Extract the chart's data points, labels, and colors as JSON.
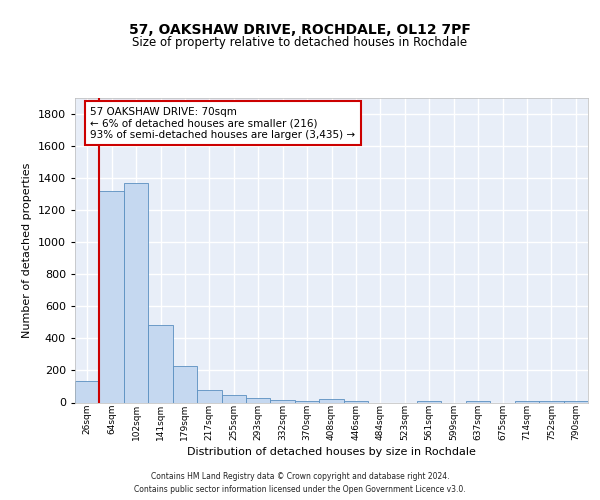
{
  "title1": "57, OAKSHAW DRIVE, ROCHDALE, OL12 7PF",
  "title2": "Size of property relative to detached houses in Rochdale",
  "xlabel": "Distribution of detached houses by size in Rochdale",
  "ylabel": "Number of detached properties",
  "bin_labels": [
    "26sqm",
    "64sqm",
    "102sqm",
    "141sqm",
    "179sqm",
    "217sqm",
    "255sqm",
    "293sqm",
    "332sqm",
    "370sqm",
    "408sqm",
    "446sqm",
    "484sqm",
    "523sqm",
    "561sqm",
    "599sqm",
    "637sqm",
    "675sqm",
    "714sqm",
    "752sqm",
    "790sqm"
  ],
  "bar_values": [
    135,
    1315,
    1365,
    485,
    225,
    75,
    45,
    28,
    15,
    10,
    20,
    10,
    0,
    0,
    10,
    0,
    10,
    0,
    10,
    10,
    10
  ],
  "bar_color": "#c5d8f0",
  "bar_edge_color": "#5a8fc0",
  "vline_color": "#cc0000",
  "annotation_line1": "57 OAKSHAW DRIVE: 70sqm",
  "annotation_line2": "← 6% of detached houses are smaller (216)",
  "annotation_line3": "93% of semi-detached houses are larger (3,435) →",
  "ylim_max": 1900,
  "yticks": [
    0,
    200,
    400,
    600,
    800,
    1000,
    1200,
    1400,
    1600,
    1800
  ],
  "bg_color": "#e8eef8",
  "grid_color": "#ffffff",
  "footer1": "Contains HM Land Registry data © Crown copyright and database right 2024.",
  "footer2": "Contains public sector information licensed under the Open Government Licence v3.0."
}
